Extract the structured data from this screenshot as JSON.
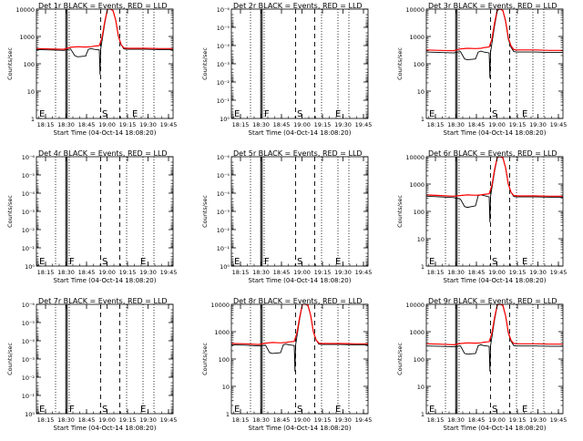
{
  "window": {
    "title": "Detector rate plots"
  },
  "shared": {
    "ylabel": "Counts/sec",
    "xlabel": "Start Time (04-Oct-14 18:08:20)",
    "x_tick_labels": [
      "18:15",
      "18:30",
      "18:45",
      "19:00",
      "19:15",
      "19:30",
      "19:45"
    ],
    "x_tick_minutes": [
      6.667,
      21.667,
      36.667,
      51.667,
      66.667,
      81.667,
      96.667
    ],
    "xlim_minutes": [
      0,
      100
    ],
    "dotted_lines_minutes": [
      14,
      24,
      66,
      78,
      86
    ],
    "solid_lines_minutes": [
      21.5,
      22.5
    ],
    "dashed_lines_minutes": [
      47,
      61
    ],
    "series_colors": {
      "events": "#000000",
      "lld": "#ff0000"
    }
  },
  "chart_data": [
    {
      "type": "line",
      "title": "Det 1r BLACK = Events, RED = LLD",
      "scale": "log",
      "ylim": [
        1,
        10000
      ],
      "y_ticks": [
        1,
        10,
        100,
        1000,
        10000
      ],
      "y_tick_labels": [
        "1",
        "10",
        "100",
        "1000",
        "10000"
      ],
      "markers": [
        {
          "label": "E",
          "x": 2
        },
        {
          "label": "S",
          "x": 48
        },
        {
          "label": "E",
          "x": 70
        }
      ],
      "series": [
        {
          "name": "Events",
          "color": "#000000",
          "x": [
            0,
            10,
            20,
            25,
            28,
            30,
            36,
            38,
            40,
            42,
            44,
            46,
            46.5,
            47,
            50,
            52,
            54,
            56,
            58,
            60,
            62,
            64,
            66,
            70,
            80,
            90,
            100
          ],
          "y": [
            330,
            320,
            310,
            350,
            200,
            180,
            190,
            340,
            360,
            340,
            330,
            320,
            40,
            330,
            3000,
            10000,
            10000,
            9000,
            4000,
            1000,
            500,
            350,
            340,
            340,
            340,
            330,
            330
          ]
        },
        {
          "name": "LLD",
          "color": "#ff0000",
          "x": [
            0,
            10,
            20,
            25,
            30,
            36,
            40,
            42,
            44,
            46,
            48,
            50,
            52,
            54,
            56,
            58,
            60,
            62,
            64,
            66,
            70,
            80,
            90,
            100
          ],
          "y": [
            360,
            350,
            340,
            400,
            420,
            410,
            420,
            440,
            450,
            460,
            900,
            3500,
            10000,
            10000,
            9000,
            4000,
            1000,
            500,
            380,
            370,
            370,
            370,
            360,
            360
          ]
        }
      ]
    },
    {
      "type": "line",
      "title": "Det 2r BLACK = Events, RED = LLD",
      "scale": "log",
      "ylim": [
        1,
        1e-06
      ],
      "y_ticks": [
        1,
        0.1,
        0.01,
        0.001,
        0.0001,
        1e-05,
        1e-06
      ],
      "y_tick_labels": [
        "10⁰",
        "10⁻¹",
        "10⁻²",
        "10⁻³",
        "10⁻⁴",
        "10⁻⁵",
        "10⁻⁶"
      ],
      "markers": [
        {
          "label": "E",
          "x": 2
        },
        {
          "label": "F",
          "x": 24
        },
        {
          "label": "S",
          "x": 48
        },
        {
          "label": "E",
          "x": 76
        }
      ],
      "series": []
    },
    {
      "type": "line",
      "title": "Det 3r BLACK = Events, RED = LLD",
      "scale": "log",
      "ylim": [
        1,
        10000
      ],
      "y_ticks": [
        1,
        10,
        100,
        1000,
        10000
      ],
      "y_tick_labels": [
        "1",
        "10",
        "100",
        "1000",
        "10000"
      ],
      "markers": [
        {
          "label": "E",
          "x": 2
        },
        {
          "label": "S",
          "x": 48
        },
        {
          "label": "E",
          "x": 70
        }
      ],
      "series": [
        {
          "name": "Events",
          "color": "#000000",
          "x": [
            0,
            10,
            20,
            25,
            28,
            30,
            36,
            38,
            40,
            42,
            44,
            46,
            46.5,
            47,
            50,
            52,
            54,
            56,
            58,
            60,
            62,
            64,
            66,
            70,
            80,
            90,
            100
          ],
          "y": [
            270,
            260,
            250,
            280,
            150,
            140,
            150,
            270,
            290,
            270,
            260,
            250,
            30,
            260,
            2500,
            9000,
            10000,
            9000,
            3500,
            800,
            400,
            280,
            270,
            270,
            270,
            260,
            260
          ]
        },
        {
          "name": "LLD",
          "color": "#ff0000",
          "x": [
            0,
            10,
            20,
            25,
            30,
            36,
            40,
            42,
            44,
            46,
            48,
            50,
            52,
            54,
            56,
            58,
            60,
            62,
            64,
            66,
            70,
            80,
            90,
            100
          ],
          "y": [
            320,
            310,
            300,
            350,
            370,
            360,
            370,
            390,
            400,
            410,
            800,
            3200,
            10000,
            10000,
            9000,
            3800,
            900,
            450,
            330,
            320,
            320,
            320,
            310,
            310
          ]
        }
      ]
    },
    {
      "type": "line",
      "title": "Det 4r BLACK = Events, RED = LLD",
      "scale": "log",
      "ylim": [
        1,
        1e-06
      ],
      "y_ticks": [
        1,
        0.1,
        0.01,
        0.001,
        0.0001,
        1e-05,
        1e-06
      ],
      "y_tick_labels": [
        "10⁰",
        "10⁻¹",
        "10⁻²",
        "10⁻³",
        "10⁻⁴",
        "10⁻⁵",
        "10⁻⁶"
      ],
      "markers": [
        {
          "label": "E",
          "x": 2
        },
        {
          "label": "F",
          "x": 24
        },
        {
          "label": "S",
          "x": 48
        },
        {
          "label": "E",
          "x": 76
        }
      ],
      "series": []
    },
    {
      "type": "line",
      "title": "Det 5r BLACK = Events, RED = LLD",
      "scale": "log",
      "ylim": [
        1,
        1e-06
      ],
      "y_ticks": [
        1,
        0.1,
        0.01,
        0.001,
        0.0001,
        1e-05,
        1e-06
      ],
      "y_tick_labels": [
        "10⁰",
        "10⁻¹",
        "10⁻²",
        "10⁻³",
        "10⁻⁴",
        "10⁻⁵",
        "10⁻⁶"
      ],
      "markers": [
        {
          "label": "E",
          "x": 2
        },
        {
          "label": "F",
          "x": 24
        },
        {
          "label": "S",
          "x": 48
        },
        {
          "label": "E",
          "x": 76
        }
      ],
      "series": []
    },
    {
      "type": "line",
      "title": "Det 6r BLACK = Events, RED = LLD",
      "scale": "log",
      "ylim": [
        1,
        10000
      ],
      "y_ticks": [
        1,
        10,
        100,
        1000,
        10000
      ],
      "y_tick_labels": [
        "1",
        "10",
        "100",
        "1000",
        "10000"
      ],
      "markers": [
        {
          "label": "E",
          "x": 2
        },
        {
          "label": "S",
          "x": 48
        },
        {
          "label": "E",
          "x": 70
        }
      ],
      "series": [
        {
          "name": "Events",
          "color": "#000000",
          "x": [
            0,
            10,
            20,
            25,
            28,
            30,
            36,
            38,
            40,
            42,
            44,
            46,
            46.5,
            47,
            50,
            52,
            54,
            56,
            58,
            60,
            62,
            64,
            66,
            70,
            80,
            90,
            100
          ],
          "y": [
            360,
            340,
            320,
            280,
            150,
            140,
            160,
            380,
            400,
            380,
            360,
            340,
            40,
            350,
            3000,
            9500,
            10000,
            9000,
            4000,
            1000,
            500,
            350,
            340,
            340,
            340,
            330,
            330
          ]
        },
        {
          "name": "LLD",
          "color": "#ff0000",
          "x": [
            0,
            10,
            20,
            25,
            30,
            36,
            40,
            42,
            44,
            46,
            48,
            50,
            52,
            54,
            56,
            58,
            60,
            62,
            64,
            66,
            70,
            80,
            90,
            100
          ],
          "y": [
            400,
            380,
            360,
            380,
            400,
            390,
            400,
            420,
            430,
            440,
            900,
            3500,
            10000,
            10000,
            9500,
            4000,
            1000,
            500,
            380,
            370,
            370,
            370,
            360,
            360
          ]
        }
      ]
    },
    {
      "type": "line",
      "title": "Det 7r BLACK = Events, RED = LLD",
      "scale": "log",
      "ylim": [
        1,
        1e-06
      ],
      "y_ticks": [
        1,
        0.1,
        0.01,
        0.001,
        0.0001,
        1e-05,
        1e-06
      ],
      "y_tick_labels": [
        "10⁰",
        "10⁻¹",
        "10⁻²",
        "10⁻³",
        "10⁻⁴",
        "10⁻⁵",
        "10⁻⁶"
      ],
      "markers": [
        {
          "label": "E",
          "x": 2
        },
        {
          "label": "F",
          "x": 24
        },
        {
          "label": "S",
          "x": 48
        },
        {
          "label": "E",
          "x": 76
        }
      ],
      "series": []
    },
    {
      "type": "line",
      "title": "Det 8r BLACK = Events, RED = LLD",
      "scale": "log",
      "ylim": [
        1,
        10000
      ],
      "y_ticks": [
        1,
        10,
        100,
        1000,
        10000
      ],
      "y_tick_labels": [
        "1",
        "10",
        "100",
        "1000",
        "10000"
      ],
      "markers": [
        {
          "label": "E",
          "x": 2
        },
        {
          "label": "S",
          "x": 48
        },
        {
          "label": "E",
          "x": 76
        }
      ],
      "series": [
        {
          "name": "Events",
          "color": "#000000",
          "x": [
            0,
            10,
            20,
            25,
            28,
            30,
            36,
            38,
            40,
            42,
            44,
            46,
            46.5,
            47,
            50,
            52,
            54,
            56,
            58,
            60,
            62,
            64,
            66,
            70,
            80,
            90,
            100
          ],
          "y": [
            330,
            320,
            300,
            320,
            170,
            160,
            170,
            330,
            350,
            330,
            320,
            310,
            35,
            320,
            3000,
            10000,
            10000,
            9000,
            4000,
            1000,
            500,
            350,
            340,
            340,
            340,
            330,
            330
          ]
        },
        {
          "name": "LLD",
          "color": "#ff0000",
          "x": [
            0,
            10,
            20,
            25,
            30,
            36,
            40,
            42,
            44,
            46,
            48,
            50,
            52,
            54,
            56,
            58,
            60,
            62,
            64,
            66,
            70,
            80,
            90,
            100
          ],
          "y": [
            370,
            360,
            340,
            380,
            400,
            390,
            400,
            420,
            430,
            440,
            900,
            3500,
            10000,
            10000,
            9500,
            4000,
            1000,
            500,
            380,
            370,
            370,
            370,
            360,
            360
          ]
        }
      ]
    },
    {
      "type": "line",
      "title": "Det 9r BLACK = Events, RED = LLD",
      "scale": "log",
      "ylim": [
        1,
        10000
      ],
      "y_ticks": [
        1,
        10,
        100,
        1000,
        10000
      ],
      "y_tick_labels": [
        "1",
        "10",
        "100",
        "1000",
        "10000"
      ],
      "markers": [
        {
          "label": "E",
          "x": 2
        },
        {
          "label": "S",
          "x": 48
        },
        {
          "label": "E",
          "x": 70
        }
      ],
      "series": [
        {
          "name": "Events",
          "color": "#000000",
          "x": [
            0,
            10,
            20,
            25,
            28,
            30,
            36,
            38,
            40,
            42,
            44,
            46,
            46.5,
            47,
            50,
            52,
            54,
            56,
            58,
            60,
            62,
            64,
            66,
            70,
            80,
            90,
            100
          ],
          "y": [
            300,
            290,
            280,
            300,
            160,
            150,
            160,
            310,
            330,
            310,
            300,
            290,
            35,
            300,
            2800,
            9500,
            10000,
            9000,
            3800,
            900,
            450,
            310,
            300,
            300,
            300,
            290,
            290
          ]
        },
        {
          "name": "LLD",
          "color": "#ff0000",
          "x": [
            0,
            10,
            20,
            25,
            30,
            36,
            40,
            42,
            44,
            46,
            48,
            50,
            52,
            54,
            56,
            58,
            60,
            62,
            64,
            66,
            70,
            80,
            90,
            100
          ],
          "y": [
            360,
            350,
            330,
            370,
            390,
            380,
            390,
            410,
            420,
            430,
            880,
            3400,
            10000,
            10000,
            9400,
            3900,
            950,
            480,
            370,
            360,
            360,
            360,
            350,
            350
          ]
        }
      ]
    }
  ]
}
